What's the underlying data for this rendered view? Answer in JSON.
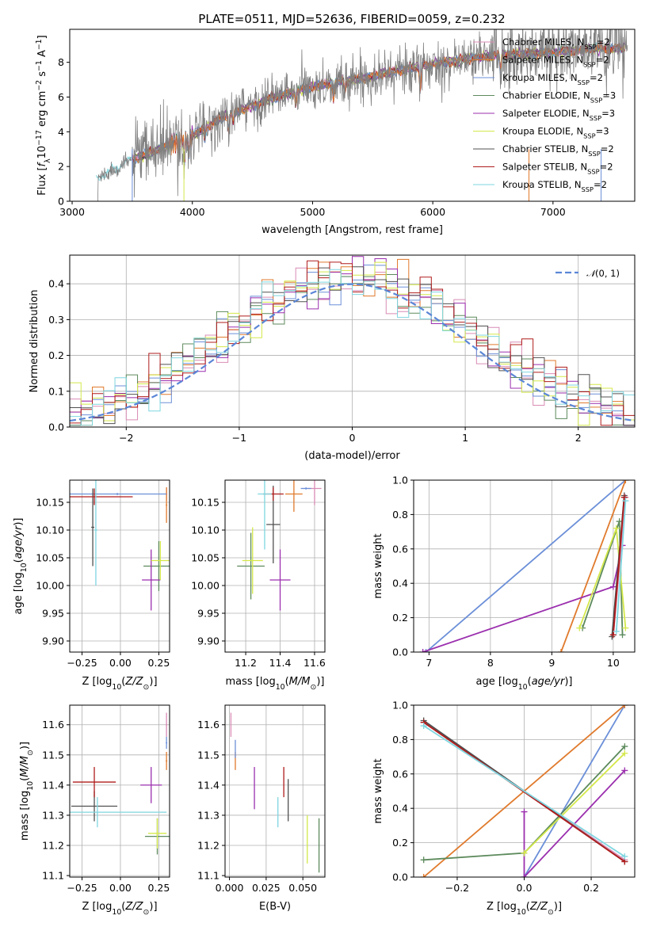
{
  "figure_title": "PLATE=0511, MJD=52636, FIBERID=0059, z=0.232",
  "legend_entries": [
    {
      "label": "Chabrier MILES, N",
      "sub": "SSP",
      "suffix": "=2",
      "color": "#d98cb5"
    },
    {
      "label": "Salpeter MILES, N",
      "sub": "SSP",
      "suffix": "=2",
      "color": "#e07a2c"
    },
    {
      "label": "Kroupa MILES, N",
      "sub": "SSP",
      "suffix": "=2",
      "color": "#6b8fd8"
    },
    {
      "label": "Chabrier ELODIE, N",
      "sub": "SSP",
      "suffix": "=3",
      "color": "#5c8a5c"
    },
    {
      "label": "Salpeter ELODIE, N",
      "sub": "SSP",
      "suffix": "=3",
      "color": "#9b2fae"
    },
    {
      "label": "Kroupa ELODIE, N",
      "sub": "SSP",
      "suffix": "=3",
      "color": "#d4e84a"
    },
    {
      "label": "Chabrier STELIB, N",
      "sub": "SSP",
      "suffix": "=2",
      "color": "#505050"
    },
    {
      "label": "Salpeter STELIB, N",
      "sub": "SSP",
      "suffix": "=2",
      "color": "#b01c1c"
    },
    {
      "label": "Kroupa STELIB, N",
      "sub": "SSP",
      "suffix": "=2",
      "color": "#7fd6e0"
    }
  ],
  "data_color": "#808080",
  "chart_data": [
    {
      "id": "spectrum",
      "type": "line",
      "xlabel": "wavelength [Angstrom, rest frame]",
      "ylabel": "Flux [f_λ 10^-17 erg cm^-2 s^-1 A^-1]",
      "xlim": [
        2980,
        7680
      ],
      "ylim": [
        0,
        9.9
      ],
      "xticks": [
        3000,
        4000,
        5000,
        6000,
        7000
      ],
      "yticks": [
        0,
        2,
        4,
        6,
        8
      ],
      "grid": false,
      "legend": "top-right",
      "continuum_points": [
        [
          3200,
          1.3
        ],
        [
          3500,
          2.4
        ],
        [
          3900,
          3.5
        ],
        [
          4000,
          3.8
        ],
        [
          4300,
          5.0
        ],
        [
          4700,
          6.0
        ],
        [
          5000,
          6.6
        ],
        [
          5500,
          7.2
        ],
        [
          6000,
          7.9
        ],
        [
          6500,
          8.4
        ],
        [
          7000,
          8.6
        ],
        [
          7400,
          8.8
        ]
      ],
      "noisy_segments": [
        [
          3200,
          3500
        ],
        [
          3500,
          3950
        ],
        [
          3950,
          7620
        ]
      ]
    },
    {
      "id": "residual-hist",
      "type": "line",
      "xlabel": "(data-model)/error",
      "ylabel": "Normed distribution",
      "xlim": [
        -2.5,
        2.5
      ],
      "ylim": [
        0,
        0.48
      ],
      "xticks": [
        -2,
        -1,
        0,
        1,
        2
      ],
      "yticks": [
        0.0,
        0.1,
        0.2,
        0.3,
        0.4
      ],
      "grid": true,
      "legend": "top-right",
      "series": [
        {
          "name": "N(0,1)",
          "color": "#5b86d6"
        }
      ],
      "bin_width": 0.1
    },
    {
      "id": "age-vs-Z",
      "type": "scatter",
      "xlabel": "Z [log10(Z/Z⊙)]",
      "ylabel": "age  [log10(age/yr)]",
      "xlim": [
        -0.33,
        0.32
      ],
      "ylim": [
        9.88,
        10.19
      ],
      "xticks": [
        -0.25,
        0.0,
        0.25
      ],
      "yticks": [
        9.9,
        9.95,
        10.0,
        10.05,
        10.1,
        10.15
      ],
      "grid": true,
      "points": [
        {
          "c": 0,
          "x": 0.3,
          "y": 10.165,
          "ex": 0.005,
          "ey": 0.012
        },
        {
          "c": 1,
          "x": 0.3,
          "y": 10.145,
          "ex": 0.005,
          "ey": 0.032
        },
        {
          "c": 2,
          "x": -0.02,
          "y": 10.165,
          "ex": 0.32,
          "ey": 0.002
        },
        {
          "c": 3,
          "x": 0.25,
          "y": 10.035,
          "ex": 0.1,
          "ey": 0.045
        },
        {
          "c": 4,
          "x": 0.2,
          "y": 10.01,
          "ex": 0.06,
          "ey": 0.055
        },
        {
          "c": 5,
          "x": 0.26,
          "y": 10.045,
          "ex": 0.06,
          "ey": 0.035
        },
        {
          "c": 6,
          "x": -0.18,
          "y": 10.105,
          "ex": 0.01,
          "ey": 0.07
        },
        {
          "c": 7,
          "x": -0.17,
          "y": 10.16,
          "ex": 0.25,
          "ey": 0.015
        },
        {
          "c": 8,
          "x": -0.16,
          "y": 10.1,
          "ex": 0.01,
          "ey": 0.1
        }
      ]
    },
    {
      "id": "age-vs-mass",
      "type": "scatter",
      "xlabel": "mass [log10(M/M⊙)]",
      "ylabel": "",
      "xlim": [
        11.08,
        11.66
      ],
      "ylim": [
        9.88,
        10.19
      ],
      "xticks": [
        11.2,
        11.4,
        11.6
      ],
      "yticks": [
        9.9,
        9.95,
        10.0,
        10.05,
        10.1,
        10.15
      ],
      "grid": true,
      "points": [
        {
          "c": 0,
          "x": 11.6,
          "y": 10.175,
          "ex": 0.04,
          "ey": 0.03
        },
        {
          "c": 1,
          "x": 11.48,
          "y": 10.165,
          "ex": 0.05,
          "ey": 0.032
        },
        {
          "c": 2,
          "x": 11.55,
          "y": 10.175,
          "ex": 0.03,
          "ey": 0.002
        },
        {
          "c": 3,
          "x": 11.23,
          "y": 10.035,
          "ex": 0.08,
          "ey": 0.06
        },
        {
          "c": 4,
          "x": 11.4,
          "y": 10.01,
          "ex": 0.06,
          "ey": 0.055
        },
        {
          "c": 5,
          "x": 11.24,
          "y": 10.045,
          "ex": 0.06,
          "ey": 0.06
        },
        {
          "c": 6,
          "x": 11.36,
          "y": 10.11,
          "ex": 0.04,
          "ey": 0.07
        },
        {
          "c": 7,
          "x": 11.36,
          "y": 10.165,
          "ex": 0.06,
          "ey": 0.012
        },
        {
          "c": 8,
          "x": 11.31,
          "y": 10.165,
          "ex": 0.04,
          "ey": 0.1
        }
      ]
    },
    {
      "id": "massweight-vs-age",
      "type": "line",
      "xlabel": "age  [log10(age/yr)]",
      "ylabel": "mass weight",
      "xlim": [
        6.75,
        10.35
      ],
      "ylim": [
        0,
        1.0
      ],
      "xticks": [
        7,
        8,
        9,
        10
      ],
      "yticks": [
        0.0,
        0.2,
        0.4,
        0.6,
        0.8,
        1.0
      ],
      "grid": true,
      "series": [
        {
          "c": 2,
          "x": [
            6.95,
            10.2
          ],
          "y": [
            0.0,
            1.0
          ]
        },
        {
          "c": 1,
          "x": [
            9.15,
            10.2
          ],
          "y": [
            0.0,
            1.0
          ]
        },
        {
          "c": 4,
          "x": [
            6.9,
            10.0,
            10.15
          ],
          "y": [
            0.0,
            0.38,
            0.62
          ]
        },
        {
          "c": 3,
          "x": [
            9.5,
            10.1,
            10.15
          ],
          "y": [
            0.14,
            0.76,
            0.1
          ]
        },
        {
          "c": 5,
          "x": [
            9.45,
            10.05,
            10.2
          ],
          "y": [
            0.14,
            0.72,
            0.14
          ]
        },
        {
          "c": 0,
          "x": [
            10.0,
            10.2
          ],
          "y": [
            0.1,
            0.9
          ]
        },
        {
          "c": 6,
          "x": [
            9.98,
            10.18
          ],
          "y": [
            0.09,
            0.91
          ]
        },
        {
          "c": 7,
          "x": [
            10.0,
            10.18
          ],
          "y": [
            0.1,
            0.9
          ]
        },
        {
          "c": 8,
          "x": [
            10.05,
            10.2
          ],
          "y": [
            0.12,
            0.88
          ]
        }
      ]
    },
    {
      "id": "mass-vs-Z",
      "type": "scatter",
      "xlabel": "Z [log10(Z/Z⊙)]",
      "ylabel": "mass [log10(M/M⊙)]",
      "xlim": [
        -0.33,
        0.32
      ],
      "ylim": [
        11.095,
        11.665
      ],
      "xticks": [
        -0.25,
        0.0,
        0.25
      ],
      "yticks": [
        11.1,
        11.2,
        11.3,
        11.4,
        11.5,
        11.6
      ],
      "grid": true,
      "points": [
        {
          "c": 0,
          "x": 0.3,
          "y": 11.6,
          "ex": 0.005,
          "ey": 0.04
        },
        {
          "c": 1,
          "x": 0.3,
          "y": 11.48,
          "ex": 0.005,
          "ey": 0.03
        },
        {
          "c": 2,
          "x": 0.3,
          "y": 11.54,
          "ex": 0.005,
          "ey": 0.02
        },
        {
          "c": 3,
          "x": 0.24,
          "y": 11.23,
          "ex": 0.08,
          "ey": 0.06
        },
        {
          "c": 4,
          "x": 0.2,
          "y": 11.4,
          "ex": 0.07,
          "ey": 0.06
        },
        {
          "c": 5,
          "x": 0.24,
          "y": 11.24,
          "ex": 0.06,
          "ey": 0.05
        },
        {
          "c": 6,
          "x": -0.17,
          "y": 11.33,
          "ex": 0.15,
          "ey": 0.05
        },
        {
          "c": 7,
          "x": -0.17,
          "y": 11.41,
          "ex": 0.14,
          "ey": 0.05
        },
        {
          "c": 8,
          "x": -0.15,
          "y": 11.31,
          "ex": 0.45,
          "ey": 0.05
        }
      ]
    },
    {
      "id": "mass-vs-ebv",
      "type": "scatter",
      "xlabel": "E(B-V)",
      "ylabel": "",
      "xlim": [
        -0.003,
        0.065
      ],
      "ylim": [
        11.095,
        11.665
      ],
      "xticks": [
        0.0,
        0.025,
        0.05
      ],
      "yticks": [
        11.1,
        11.2,
        11.3,
        11.4,
        11.5,
        11.6
      ],
      "grid": true,
      "points": [
        {
          "c": 0,
          "x": 0.001,
          "y": 11.6,
          "ex": 0,
          "ey": 0.04
        },
        {
          "c": 1,
          "x": 0.004,
          "y": 11.48,
          "ex": 0,
          "ey": 0.03
        },
        {
          "c": 2,
          "x": 0.004,
          "y": 11.52,
          "ex": 0,
          "ey": 0.03
        },
        {
          "c": 3,
          "x": 0.061,
          "y": 11.2,
          "ex": 0,
          "ey": 0.09
        },
        {
          "c": 4,
          "x": 0.017,
          "y": 11.39,
          "ex": 0,
          "ey": 0.07
        },
        {
          "c": 5,
          "x": 0.053,
          "y": 11.22,
          "ex": 0,
          "ey": 0.08
        },
        {
          "c": 6,
          "x": 0.04,
          "y": 11.35,
          "ex": 0,
          "ey": 0.07
        },
        {
          "c": 7,
          "x": 0.037,
          "y": 11.41,
          "ex": 0,
          "ey": 0.05
        },
        {
          "c": 8,
          "x": 0.033,
          "y": 11.31,
          "ex": 0,
          "ey": 0.05
        }
      ]
    },
    {
      "id": "massweight-vs-Z",
      "type": "line",
      "xlabel": "Z [log10(Z/Z⊙)]",
      "ylabel": "mass weight",
      "xlim": [
        -0.33,
        0.33
      ],
      "ylim": [
        0,
        1.0
      ],
      "xticks": [
        -0.2,
        0.0,
        0.2
      ],
      "yticks": [
        0.0,
        0.2,
        0.4,
        0.6,
        0.8,
        1.0
      ],
      "grid": true,
      "series": [
        {
          "c": 2,
          "x": [
            0.0,
            0.3
          ],
          "y": [
            0.0,
            1.0
          ]
        },
        {
          "c": 1,
          "x": [
            -0.3,
            0.3
          ],
          "y": [
            0.0,
            1.0
          ]
        },
        {
          "c": 4,
          "x": [
            0.0,
            0.0,
            0.3
          ],
          "y": [
            0.38,
            0.0,
            0.62
          ]
        },
        {
          "c": 3,
          "x": [
            -0.3,
            0.0,
            0.3
          ],
          "y": [
            0.1,
            0.14,
            0.76
          ]
        },
        {
          "c": 5,
          "x": [
            0.0,
            0.3
          ],
          "y": [
            0.14,
            0.72
          ]
        },
        {
          "c": 0,
          "x": [
            -0.3,
            0.3
          ],
          "y": [
            0.9,
            0.1
          ]
        },
        {
          "c": 6,
          "x": [
            -0.3,
            0.3
          ],
          "y": [
            0.91,
            0.09
          ]
        },
        {
          "c": 7,
          "x": [
            -0.3,
            0.3
          ],
          "y": [
            0.9,
            0.09
          ]
        },
        {
          "c": 8,
          "x": [
            -0.3,
            0.3
          ],
          "y": [
            0.88,
            0.12
          ]
        }
      ]
    }
  ]
}
